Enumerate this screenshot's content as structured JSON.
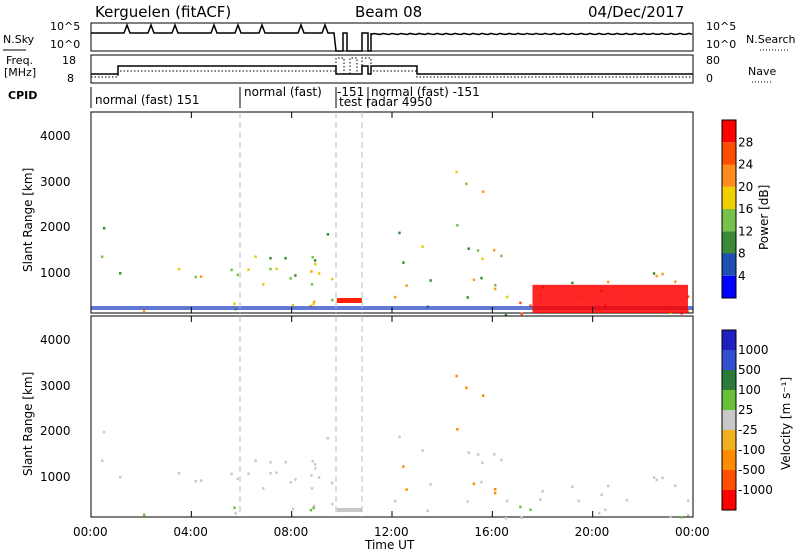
{
  "header": {
    "station": "Kerguelen (fitACF)",
    "beam": "Beam 08",
    "date": "04/Dec/2017"
  },
  "top_labels": {
    "nsky": "N.Sky",
    "nsky_ticks": [
      "10^5",
      "10^0"
    ],
    "nsearch": "N.Search",
    "nsearch_ticks": [
      "10^5",
      "10^0"
    ],
    "freq": "Freq.",
    "freq_unit": "[MHz]",
    "freq_ticks": [
      "18",
      "8"
    ],
    "nave": "Nave",
    "nave_ticks": [
      "80",
      "0"
    ],
    "cpid": "CPID"
  },
  "cpid_segments": [
    {
      "label": "normal (fast) 151"
    },
    {
      "label": "normal (fast)"
    },
    {
      "label": "-151"
    },
    {
      "label": "test radar 4950"
    },
    {
      "label": "normal (fast) -151"
    }
  ],
  "colors": {
    "power_scale": [
      "#0000ff",
      "#1f4fb5",
      "#3a8a3a",
      "#77c24a",
      "#f0d000",
      "#ff8c1a",
      "#ff4d00",
      "#ff0000"
    ],
    "velocity_scale": [
      "#2020c0",
      "#3050d0",
      "#2a7a3a",
      "#6ac03a",
      "#c8c8c8",
      "#f0b020",
      "#ff8c00",
      "#ff5000",
      "#ff0000"
    ]
  },
  "chart_data": [
    {
      "type": "heatmap",
      "panel": "power",
      "ylabel": "Slant Range [km]",
      "ylim": [
        180,
        4600
      ],
      "yticks": [
        "4000",
        "3000",
        "2000",
        "1000"
      ],
      "xlim": [
        "00:00",
        "24:00"
      ],
      "colorbar_label": "Power [dB]",
      "colorbar_ticks": [
        "28",
        "24",
        "20",
        "16",
        "12",
        "8",
        "4"
      ],
      "colorbar_range": [
        0,
        32
      ]
    },
    {
      "type": "heatmap",
      "panel": "velocity",
      "ylabel": "Slant Range [km]",
      "ylim": [
        180,
        4600
      ],
      "yticks": [
        "4000",
        "3000",
        "2000",
        "1000"
      ],
      "xlabel": "Time UT",
      "xticks": [
        "00:00",
        "04:00",
        "08:00",
        "12:00",
        "16:00",
        "20:00",
        "00:00"
      ],
      "colorbar_label": "Velocity [m s⁻¹]",
      "colorbar_ticks": [
        "1000",
        "500",
        "100",
        "25",
        "-25",
        "-100",
        "-500",
        "-1000"
      ]
    }
  ]
}
